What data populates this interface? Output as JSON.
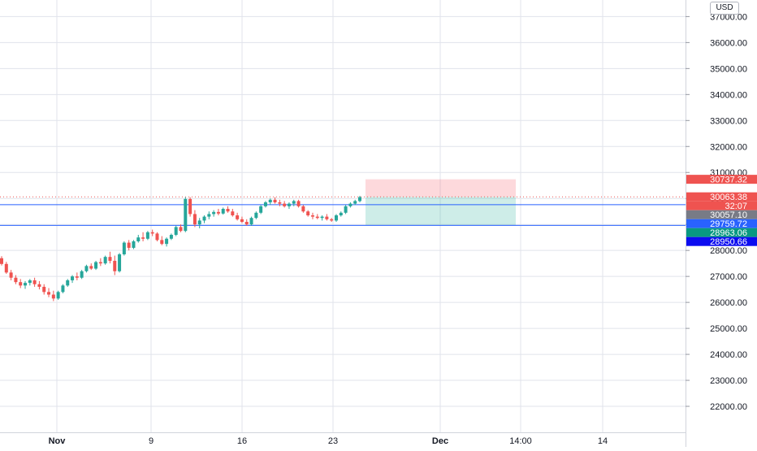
{
  "currency_badge": "USD",
  "chart_data": {
    "type": "candlestick",
    "ylim": [
      21000,
      37450
    ],
    "y_ticks": [
      22000,
      23000,
      24000,
      25000,
      26000,
      27000,
      28000,
      29000,
      30000,
      31000,
      32000,
      33000,
      34000,
      35000,
      36000,
      37000
    ],
    "y_tick_labels": [
      "22000.00",
      "23000.00",
      "24000.00",
      "25000.00",
      "26000.00",
      "27000.00",
      "28000.00",
      "29000.00",
      "30000.00",
      "31000.00",
      "32000.00",
      "33000.00",
      "34000.00",
      "35000.00",
      "36000.00",
      "37000.00"
    ],
    "x_ticks": [
      {
        "label": "Nov",
        "bold": true
      },
      {
        "label": "9",
        "bold": false
      },
      {
        "label": "16",
        "bold": false
      },
      {
        "label": "23",
        "bold": false
      },
      {
        "label": "Dec",
        "bold": true
      },
      {
        "label": "14:00",
        "bold": false
      },
      {
        "label": "14",
        "bold": false
      }
    ],
    "price_levels": [
      {
        "label": "30737.32",
        "value": 30737.32,
        "bg": "#ef5350"
      },
      {
        "label": "30063.38",
        "value": 30063.38,
        "bg": "#ef5350"
      },
      {
        "label": "32:07",
        "value": 29790,
        "bg": "#ef5350"
      },
      {
        "label": "30057.10",
        "value": 29560,
        "bg": "#787b86"
      },
      {
        "label": "29759.72",
        "value": 29759.72,
        "bg": "#2962ff"
      },
      {
        "label": "28963.06",
        "value": 28963.06,
        "bg": "#089981"
      },
      {
        "label": "28950.66",
        "value": 28950.66,
        "bg": "#0c0cf0"
      }
    ],
    "horizontal_lines": [
      {
        "value": 29759.72,
        "color": "#2962ff"
      },
      {
        "value": 28963.06,
        "color": "#2962ff"
      }
    ],
    "last_price": {
      "value": 30063.38,
      "color": "#ef5350"
    },
    "position": {
      "entry": 30063.38,
      "stop": 30737.32,
      "target": 28963.06
    },
    "colors": {
      "up": "#26a69a",
      "down": "#ef5350",
      "grid": "#e0e3eb",
      "axis": "#d1d4dc"
    },
    "candles": [
      [
        27700,
        27780,
        27420,
        27480
      ],
      [
        27480,
        27560,
        27100,
        27150
      ],
      [
        27150,
        27250,
        26850,
        26950
      ],
      [
        26950,
        27050,
        26700,
        26780
      ],
      [
        26780,
        26900,
        26550,
        26650
      ],
      [
        26650,
        26820,
        26520,
        26750
      ],
      [
        26750,
        26900,
        26650,
        26850
      ],
      [
        26850,
        26950,
        26600,
        26700
      ],
      [
        26700,
        26820,
        26500,
        26600
      ],
      [
        26600,
        26700,
        26300,
        26400
      ],
      [
        26400,
        26550,
        26200,
        26300
      ],
      [
        26300,
        26450,
        26050,
        26150
      ],
      [
        26150,
        26450,
        26100,
        26400
      ],
      [
        26400,
        26700,
        26350,
        26650
      ],
      [
        26650,
        26900,
        26600,
        26850
      ],
      [
        26850,
        27050,
        26750,
        27000
      ],
      [
        27000,
        27150,
        26850,
        26950
      ],
      [
        26950,
        27250,
        26900,
        27200
      ],
      [
        27200,
        27450,
        27150,
        27400
      ],
      [
        27400,
        27500,
        27250,
        27300
      ],
      [
        27300,
        27600,
        27250,
        27550
      ],
      [
        27550,
        27700,
        27400,
        27500
      ],
      [
        27500,
        27800,
        27450,
        27750
      ],
      [
        27750,
        27950,
        27500,
        27600
      ],
      [
        27600,
        27800,
        27050,
        27200
      ],
      [
        27200,
        27900,
        27150,
        27850
      ],
      [
        27850,
        28350,
        27800,
        28300
      ],
      [
        28300,
        28400,
        28000,
        28100
      ],
      [
        28100,
        28400,
        28050,
        28350
      ],
      [
        28350,
        28600,
        28300,
        28500
      ],
      [
        28500,
        28700,
        28350,
        28450
      ],
      [
        28450,
        28750,
        28400,
        28700
      ],
      [
        28700,
        28800,
        28550,
        28650
      ],
      [
        28650,
        28700,
        28350,
        28400
      ],
      [
        28400,
        28550,
        28200,
        28250
      ],
      [
        28250,
        28500,
        28150,
        28450
      ],
      [
        28450,
        28650,
        28400,
        28600
      ],
      [
        28600,
        28950,
        28550,
        28900
      ],
      [
        28900,
        29000,
        28700,
        28750
      ],
      [
        28750,
        30050,
        28700,
        29980
      ],
      [
        29980,
        30050,
        29300,
        29400
      ],
      [
        29400,
        29550,
        28900,
        29000
      ],
      [
        29000,
        29250,
        28850,
        29150
      ],
      [
        29150,
        29350,
        29050,
        29300
      ],
      [
        29300,
        29500,
        29200,
        29400
      ],
      [
        29400,
        29550,
        29300,
        29480
      ],
      [
        29480,
        29600,
        29350,
        29420
      ],
      [
        29420,
        29650,
        29380,
        29600
      ],
      [
        29600,
        29700,
        29450,
        29500
      ],
      [
        29500,
        29600,
        29300,
        29350
      ],
      [
        29350,
        29450,
        29150,
        29200
      ],
      [
        29200,
        29300,
        29050,
        29100
      ],
      [
        29100,
        29200,
        28950,
        29000
      ],
      [
        29000,
        29300,
        28950,
        29250
      ],
      [
        29250,
        29500,
        29200,
        29450
      ],
      [
        29450,
        29750,
        29400,
        29700
      ],
      [
        29700,
        29900,
        29650,
        29850
      ],
      [
        29850,
        30000,
        29750,
        29950
      ],
      [
        29950,
        30050,
        29800,
        29850
      ],
      [
        29850,
        29950,
        29700,
        29800
      ],
      [
        29800,
        29900,
        29650,
        29700
      ],
      [
        29700,
        29850,
        29600,
        29800
      ],
      [
        29800,
        29950,
        29700,
        29900
      ],
      [
        29900,
        29950,
        29650,
        29700
      ],
      [
        29700,
        29750,
        29450,
        29500
      ],
      [
        29500,
        29550,
        29300,
        29350
      ],
      [
        29350,
        29450,
        29200,
        29300
      ],
      [
        29300,
        29400,
        29200,
        29250
      ],
      [
        29250,
        29350,
        29150,
        29300
      ],
      [
        29300,
        29400,
        29150,
        29200
      ],
      [
        29200,
        29250,
        29100,
        29150
      ],
      [
        29150,
        29400,
        29100,
        29350
      ],
      [
        29350,
        29500,
        29300,
        29450
      ],
      [
        29450,
        29750,
        29400,
        29700
      ],
      [
        29700,
        29850,
        29650,
        29800
      ],
      [
        29800,
        29950,
        29750,
        29900
      ],
      [
        29900,
        30100,
        29850,
        30050
      ]
    ]
  }
}
